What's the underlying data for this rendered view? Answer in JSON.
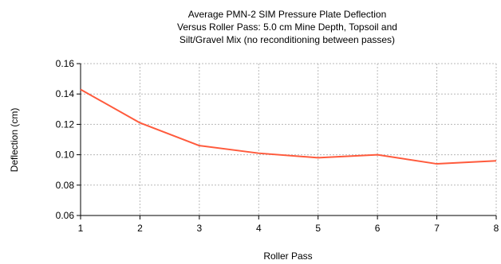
{
  "chart_data": {
    "type": "line",
    "title": [
      "Average PMN-2 SIM Pressure Plate Deflection",
      "Versus Roller Pass: 5.0 cm Mine Depth, Topsoil and",
      "Silt/Gravel Mix (no reconditioning between passes)"
    ],
    "xlabel": "Roller Pass",
    "ylabel": "Deflection (cm)",
    "x": [
      1,
      2,
      3,
      4,
      5,
      6,
      7,
      8
    ],
    "series": [
      {
        "values": [
          0.143,
          0.121,
          0.106,
          0.101,
          0.098,
          0.1,
          0.094,
          0.096
        ]
      }
    ],
    "xlim": [
      1,
      8
    ],
    "ylim": [
      0.06,
      0.16
    ],
    "x_ticks": [
      "1",
      "2",
      "3",
      "4",
      "5",
      "6",
      "7",
      "8"
    ],
    "y_ticks": [
      "0.06",
      "0.08",
      "0.10",
      "0.12",
      "0.14",
      "0.16"
    ],
    "grid": true,
    "colors": {
      "series": "#ff5a3c",
      "grid": "#b8b8b8",
      "axis": "#000000"
    }
  }
}
